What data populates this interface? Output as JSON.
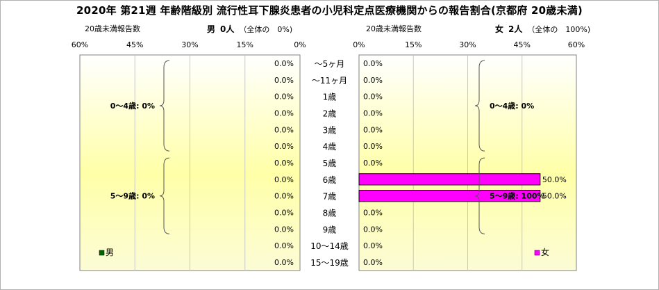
{
  "chart_data": {
    "type": "bar",
    "title": "2020年 第21週 年齢階級別 流行性耳下腺炎患者の小児科定点医療機関からの報告割合(京都府 20歳未満)",
    "categories": [
      "～5ヶ月",
      "～11ヶ月",
      "1歳",
      "2歳",
      "3歳",
      "4歳",
      "5歳",
      "6歳",
      "7歳",
      "8歳",
      "9歳",
      "10～14歳",
      "15～19歳"
    ],
    "xlim": [
      0,
      60
    ],
    "x_ticks": [
      "60%",
      "45%",
      "30%",
      "15%",
      "0%",
      "0%",
      "15%",
      "30%",
      "45%",
      "60%"
    ],
    "grid": true,
    "male": {
      "header_count_label": "20歳未満報告数",
      "header_sex": "男",
      "header_total": "0人",
      "header_share": "（全体の　0%)",
      "values": [
        0,
        0,
        0,
        0,
        0,
        0,
        0,
        0,
        0,
        0,
        0,
        0,
        0
      ],
      "labels": [
        "0.0%",
        "0.0%",
        "0.0%",
        "0.0%",
        "0.0%",
        "0.0%",
        "0.0%",
        "0.0%",
        "0.0%",
        "0.0%",
        "0.0%",
        "0.0%",
        "0.0%"
      ],
      "group_labels": [
        "0～4歳: 0%",
        "5～9歳: 0%"
      ],
      "legend": "男",
      "color": "#006400"
    },
    "female": {
      "header_count_label": "20歳未満報告数",
      "header_sex": "女",
      "header_total": "2人",
      "header_share": "（全体の　100%)",
      "values": [
        0,
        0,
        0,
        0,
        0,
        0,
        0,
        50,
        50,
        0,
        0,
        0,
        0
      ],
      "labels": [
        "0.0%",
        "0.0%",
        "0.0%",
        "0.0%",
        "0.0%",
        "0.0%",
        "0.0%",
        "50.0%",
        "50.0%",
        "0.0%",
        "0.0%",
        "0.0%",
        "0.0%"
      ],
      "group_labels": [
        "0～4歳: 0%",
        "5～9歳: 100%"
      ],
      "legend": "女",
      "color": "#ff00ff"
    }
  }
}
